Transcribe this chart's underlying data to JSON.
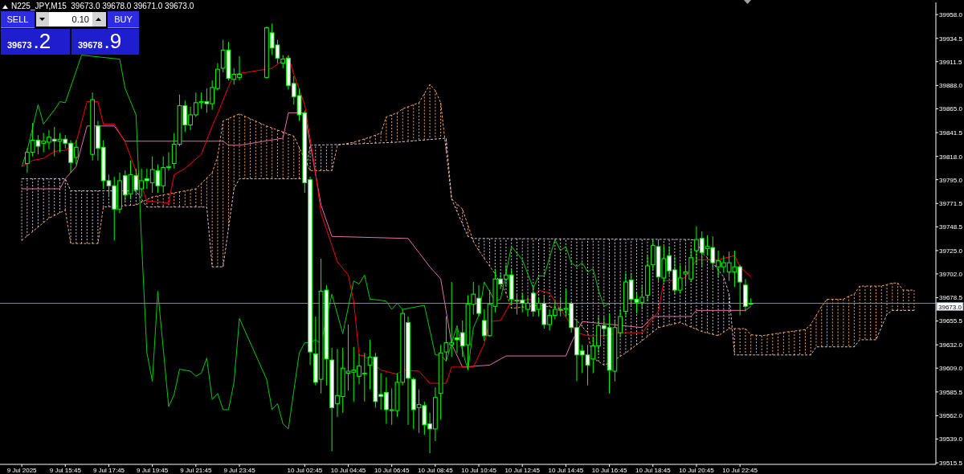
{
  "chart_data": {
    "type": "candlestick",
    "title": "N225_JPY,M15  39673.0 39678.0 39671.0 39673.0",
    "annotations": [
      "SELL",
      "0.10",
      "BUY",
      "39673",
      ".2",
      "39678",
      ".9"
    ],
    "xlim": [
      "2025-07-09T12:45",
      "2025-07-11T07:45"
    ],
    "xticks": [
      {
        "value": "2025-07-09T13:45",
        "label": "9 Jul 2025"
      },
      {
        "value": "2025-07-09T15:45",
        "label": "9 Jul 15:45"
      },
      {
        "value": "2025-07-09T17:45",
        "label": "9 Jul 17:45"
      },
      {
        "value": "2025-07-09T19:45",
        "label": "9 Jul 19:45"
      },
      {
        "value": "2025-07-09T21:45",
        "label": "9 Jul 21:45"
      },
      {
        "value": "2025-07-09T23:45",
        "label": "9 Jul 23:45"
      },
      {
        "value": "2025-07-10T02:45",
        "label": "10 Jul 02:45"
      },
      {
        "value": "2025-07-10T04:45",
        "label": "10 Jul 04:45"
      },
      {
        "value": "2025-07-10T06:45",
        "label": "10 Jul 06:45"
      },
      {
        "value": "2025-07-10T08:45",
        "label": "10 Jul 08:45"
      },
      {
        "value": "2025-07-10T10:45",
        "label": "10 Jul 10:45"
      },
      {
        "value": "2025-07-10T12:45",
        "label": "10 Jul 12:45"
      },
      {
        "value": "2025-07-10T14:45",
        "label": "10 Jul 14:45"
      },
      {
        "value": "2025-07-10T16:45",
        "label": "10 Jul 16:45"
      },
      {
        "value": "2025-07-10T18:45",
        "label": "10 Jul 18:45"
      },
      {
        "value": "2025-07-10T20:45",
        "label": "10 Jul 20:45"
      },
      {
        "value": "2025-07-10T22:45",
        "label": "10 Jul 22:45"
      }
    ],
    "ylim": [
      39514,
      39970
    ],
    "yticks": [
      39515.5,
      {
        "value": 39539,
        "label": "39539.0"
      },
      {
        "value": 39562,
        "label": "39562.0"
      },
      39585.5,
      {
        "value": 39609,
        "label": "39609.0"
      },
      {
        "value": 39632,
        "label": "39632.0"
      },
      39655.5,
      39678.5,
      {
        "value": 39702,
        "label": "39702.0"
      },
      {
        "value": 39725,
        "label": "39725.0"
      },
      39748.5,
      39771.5,
      {
        "value": 39795,
        "label": "39795.0"
      },
      {
        "value": 39818,
        "label": "39818.0"
      },
      39841.5,
      {
        "value": 39865,
        "label": "39865.0"
      },
      {
        "value": 39888,
        "label": "39888.0"
      },
      39911.5,
      39934.5,
      {
        "value": 39958,
        "label": "39958.0"
      }
    ],
    "ref_lines": [
      {
        "axis": "y",
        "value": 39673,
        "label": "39673.0",
        "color": "#778899"
      }
    ],
    "series": [
      {
        "type": "line",
        "color": "#f4a460",
        "line_style": "dashed",
        "x": [
          "2025-07-09T13:45",
          "2025-07-09T15:00",
          "2025-07-09T15:45",
          "2025-07-09T16:00",
          "2025-07-09T17:15",
          "2025-07-09T17:30",
          "2025-07-09T19:00",
          "2025-07-09T19:45",
          "2025-07-09T20:45",
          "2025-07-09T21:45",
          "2025-07-09T22:30",
          "2025-07-09T22:45",
          "2025-07-09T23:00",
          "2025-07-09T23:45",
          "2025-07-10T01:00",
          "2025-07-10T02:15",
          "2025-07-10T03:00",
          "2025-07-10T04:00",
          "2025-07-10T04:15",
          "2025-07-10T05:00",
          "2025-07-10T05:45",
          "2025-07-10T06:15",
          "2025-07-10T06:30",
          "2025-07-10T07:00",
          "2025-07-10T07:15",
          "2025-07-10T08:00",
          "2025-07-10T08:30",
          "2025-07-10T08:45",
          "2025-07-10T09:00",
          "2025-07-10T09:15",
          "2025-07-10T09:30",
          "2025-07-10T10:00",
          "2025-07-10T10:15",
          "2025-07-10T10:30",
          "2025-07-10T10:45",
          "2025-07-10T11:30",
          "2025-07-10T12:00",
          "2025-07-10T12:15",
          "2025-07-10T13:30",
          "2025-07-10T14:30",
          "2025-07-10T15:15",
          "2025-07-10T15:45",
          "2025-07-10T16:00",
          "2025-07-10T16:30",
          "2025-07-10T16:45",
          "2025-07-10T17:30",
          "2025-07-10T18:15",
          "2025-07-10T19:00",
          "2025-07-10T20:00",
          "2025-07-10T21:00",
          "2025-07-10T21:45",
          "2025-07-10T22:15",
          "2025-07-10T23:00",
          "2025-07-10T23:15",
          "2025-07-10T23:45",
          "2025-07-11T01:00",
          "2025-07-11T01:45",
          "2025-07-11T02:00",
          "2025-07-11T02:30",
          "2025-07-11T02:45",
          "2025-07-11T03:30",
          "2025-07-11T03:45",
          "2025-07-11T04:00",
          "2025-07-11T04:15",
          "2025-07-11T05:15",
          "2025-07-11T05:45",
          "2025-07-11T06:00",
          "2025-07-11T06:15",
          "2025-07-11T06:45"
        ],
        "values": [
          39735,
          39757,
          39765,
          39732,
          39732,
          39768,
          39770,
          39778,
          39782,
          39786,
          39802,
          39818,
          39853,
          39860,
          39848,
          39838,
          39804,
          39804,
          39829,
          39832,
          39837,
          39841,
          39857,
          39861,
          39865,
          39871,
          39889,
          39883,
          39871,
          39823,
          39776,
          39766,
          39750,
          39734,
          39725,
          39702,
          39683,
          39668,
          39671,
          39668,
          39656,
          39644,
          39619,
          39612,
          39614,
          39624,
          39636,
          39649,
          39654,
          39645,
          39641,
          39648,
          39648,
          39642,
          39641,
          39645,
          39647,
          39652,
          39670,
          39677,
          39677,
          39680,
          39682,
          39690,
          39690,
          39693,
          39693,
          39686,
          39686
        ]
      },
      {
        "type": "line",
        "color": "#d8bfd8",
        "line_style": "dashed",
        "x": [
          "2025-07-09T13:45",
          "2025-07-09T15:45",
          "2025-07-09T16:00",
          "2025-07-09T19:00",
          "2025-07-09T19:30",
          "2025-07-09T22:15",
          "2025-07-09T22:30",
          "2025-07-09T23:00",
          "2025-07-09T23:15",
          "2025-07-09T23:30",
          "2025-07-09T23:45",
          "2025-07-10T02:45",
          "2025-07-10T03:00",
          "2025-07-10T04:45",
          "2025-07-10T07:00",
          "2025-07-10T09:15",
          "2025-07-10T09:30",
          "2025-07-10T10:15",
          "2025-07-10T10:30",
          "2025-07-10T20:30",
          "2025-07-10T20:45",
          "2025-07-10T21:00",
          "2025-07-10T21:30",
          "2025-07-10T21:45",
          "2025-07-10T22:00",
          "2025-07-10T22:15",
          "2025-07-10T22:30",
          "2025-07-11T02:00",
          "2025-07-11T02:15",
          "2025-07-11T04:00",
          "2025-07-11T04:15",
          "2025-07-11T05:00",
          "2025-07-11T05:30",
          "2025-07-11T05:45",
          "2025-07-11T06:45"
        ],
        "values": [
          39796,
          39796,
          39784,
          39784,
          39768,
          39768,
          39709,
          39709,
          39747,
          39786,
          39796,
          39796,
          39829,
          39830,
          39832,
          39836,
          39776,
          39739,
          39737,
          39736,
          39735,
          39723,
          39713,
          39706,
          39699,
          39682,
          39622,
          39622,
          39630,
          39630,
          39637,
          39637,
          39662,
          39666,
          39666
        ]
      },
      {
        "type": "line",
        "color": "#00cc00",
        "x": [
          "2025-07-09T13:45",
          "2025-07-09T14:00",
          "2025-07-09T14:30",
          "2025-07-09T14:45",
          "2025-07-09T15:15",
          "2025-07-09T15:30",
          "2025-07-09T15:45",
          "2025-07-09T16:30",
          "2025-07-09T18:15",
          "2025-07-09T18:30",
          "2025-07-09T19:00",
          "2025-07-09T19:15",
          "2025-07-09T19:30",
          "2025-07-09T19:45",
          "2025-07-09T20:00",
          "2025-07-09T20:30",
          "2025-07-09T20:45",
          "2025-07-09T21:00",
          "2025-07-09T21:30",
          "2025-07-09T21:45",
          "2025-07-09T22:00",
          "2025-07-09T22:15",
          "2025-07-09T22:30",
          "2025-07-09T22:45",
          "2025-07-09T23:00",
          "2025-07-09T23:15",
          "2025-07-09T23:30",
          "2025-07-09T23:45",
          "2025-07-10T01:00",
          "2025-07-10T01:15",
          "2025-07-10T01:30",
          "2025-07-10T01:45",
          "2025-07-10T02:00",
          "2025-07-10T02:30",
          "2025-07-10T02:45",
          "2025-07-10T03:00",
          "2025-07-10T03:15",
          "2025-07-10T03:30",
          "2025-07-10T04:00",
          "2025-07-10T04:30",
          "2025-07-10T05:00",
          "2025-07-10T05:15",
          "2025-07-10T05:30",
          "2025-07-10T05:45",
          "2025-07-10T06:15",
          "2025-07-10T06:30",
          "2025-07-10T06:45",
          "2025-07-10T07:00",
          "2025-07-10T07:15",
          "2025-07-10T07:30",
          "2025-07-10T08:15",
          "2025-07-10T08:45",
          "2025-07-10T09:00",
          "2025-07-10T09:15",
          "2025-07-10T09:45",
          "2025-07-10T10:00",
          "2025-07-10T10:15",
          "2025-07-10T10:30",
          "2025-07-10T10:45",
          "2025-07-10T11:00",
          "2025-07-10T11:30",
          "2025-07-10T11:45",
          "2025-07-10T12:15",
          "2025-07-10T12:45",
          "2025-07-10T13:15",
          "2025-07-10T13:30",
          "2025-07-10T13:45",
          "2025-07-10T14:15",
          "2025-07-10T14:30",
          "2025-07-10T14:45",
          "2025-07-10T15:00",
          "2025-07-10T15:15",
          "2025-07-10T15:30",
          "2025-07-10T15:45",
          "2025-07-10T16:00",
          "2025-07-10T16:15",
          "2025-07-10T16:30",
          "2025-07-10T16:45"
        ],
        "values": [
          39808,
          39824,
          39869,
          39850,
          39864,
          39872,
          39871,
          39918,
          39914,
          39885,
          39859,
          39735,
          39624,
          39596,
          39685,
          39571,
          39583,
          39608,
          39606,
          39601,
          39604,
          39619,
          39578,
          39584,
          39568,
          39568,
          39595,
          39658,
          39598,
          39568,
          39574,
          39554,
          39549,
          39624,
          39634,
          39634,
          39637,
          39633,
          39682,
          39643,
          39695,
          39692,
          39701,
          39677,
          39676,
          39675,
          39667,
          39673,
          39667,
          39668,
          39671,
          39622,
          39622,
          39616,
          39651,
          39626,
          39607,
          39649,
          39661,
          39694,
          39675,
          39677,
          39729,
          39716,
          39688,
          39700,
          39700,
          39736,
          39725,
          39729,
          39713,
          39709,
          39713,
          39704,
          39707,
          39686,
          39670,
          39673
        ]
      },
      {
        "type": "line",
        "color": "#e06fb0",
        "x": [
          "2025-07-09T13:45",
          "2025-07-09T15:30",
          "2025-07-09T15:45",
          "2025-07-09T16:15",
          "2025-07-09T16:45",
          "2025-07-09T18:00",
          "2025-07-09T18:30",
          "2025-07-09T23:00",
          "2025-07-09T23:15",
          "2025-07-09T23:45",
          "2025-07-10T01:45",
          "2025-07-10T02:00",
          "2025-07-10T02:45",
          "2025-07-10T03:30",
          "2025-07-10T04:00",
          "2025-07-10T07:30",
          "2025-07-10T08:00",
          "2025-07-10T08:30",
          "2025-07-10T09:00",
          "2025-07-10T09:30",
          "2025-07-10T10:00",
          "2025-07-10T11:15",
          "2025-07-10T12:00",
          "2025-07-10T14:45",
          "2025-07-10T15:00",
          "2025-07-10T15:30",
          "2025-07-10T18:15",
          "2025-07-10T18:45",
          "2025-07-10T20:30",
          "2025-07-10T20:45",
          "2025-07-10T23:00",
          "2025-07-10T23:15"
        ],
        "values": [
          39786,
          39786,
          39796,
          39808,
          39848,
          39848,
          39833,
          39833,
          39829,
          39829,
          39836,
          39861,
          39861,
          39770,
          39739,
          39737,
          39723,
          39709,
          39697,
          39633,
          39610,
          39612,
          39621,
          39621,
          39634,
          39655,
          39649,
          39660,
          39660,
          39666,
          39666,
          39670
        ]
      },
      {
        "type": "line",
        "color": "#ff0000",
        "x": [
          "2025-07-09T13:45",
          "2025-07-09T14:15",
          "2025-07-09T14:45",
          "2025-07-09T15:15",
          "2025-07-09T15:45",
          "2025-07-09T16:15",
          "2025-07-09T16:45",
          "2025-07-09T17:15",
          "2025-07-09T17:30",
          "2025-07-09T18:00",
          "2025-07-09T18:30",
          "2025-07-09T19:30",
          "2025-07-09T20:30",
          "2025-07-09T20:45",
          "2025-07-09T21:15",
          "2025-07-09T22:00",
          "2025-07-09T22:30",
          "2025-07-09T22:45",
          "2025-07-09T23:15",
          "2025-07-09T23:30",
          "2025-07-10T01:15",
          "2025-07-10T02:00",
          "2025-07-10T02:15",
          "2025-07-10T02:45",
          "2025-07-10T03:15",
          "2025-07-10T03:30",
          "2025-07-10T04:15",
          "2025-07-10T04:45",
          "2025-07-10T05:00",
          "2025-07-10T05:15",
          "2025-07-10T05:30",
          "2025-07-10T06:15",
          "2025-07-10T07:00",
          "2025-07-10T07:15",
          "2025-07-10T08:00",
          "2025-07-10T08:30",
          "2025-07-10T09:15",
          "2025-07-10T09:30",
          "2025-07-10T10:30",
          "2025-07-10T11:00",
          "2025-07-10T11:15",
          "2025-07-10T11:45",
          "2025-07-10T12:15",
          "2025-07-10T13:15",
          "2025-07-10T13:30",
          "2025-07-10T14:00",
          "2025-07-10T14:30",
          "2025-07-10T15:15",
          "2025-07-10T15:45",
          "2025-07-10T16:30",
          "2025-07-10T17:15",
          "2025-07-10T18:15",
          "2025-07-10T18:45",
          "2025-07-10T19:00",
          "2025-07-10T19:15",
          "2025-07-10T20:00",
          "2025-07-10T20:15",
          "2025-07-10T20:45",
          "2025-07-10T21:45",
          "2025-07-10T22:30",
          "2025-07-10T22:45",
          "2025-07-10T23:15"
        ],
        "values": [
          39808,
          39814,
          39816,
          39823,
          39824,
          39832,
          39872,
          39872,
          39850,
          39850,
          39832,
          39774,
          39772,
          39800,
          39806,
          39820,
          39848,
          39860,
          39887,
          39899,
          39905,
          39917,
          39899,
          39869,
          39802,
          39762,
          39714,
          39701,
          39675,
          39622,
          39621,
          39607,
          39603,
          39607,
          39606,
          39594,
          39594,
          39610,
          39610,
          39633,
          39655,
          39656,
          39675,
          39677,
          39686,
          39683,
          39667,
          39644,
          39641,
          39641,
          39644,
          39644,
          39658,
          39665,
          39695,
          39696,
          39699,
          39716,
          39716,
          39720,
          39709,
          39699
        ]
      },
      {
        "color": "#00ff00",
        "x": [
          "2025-07-09T14:00",
          "2025-07-09T14:15",
          "2025-07-09T14:30",
          "2025-07-09T14:45",
          "2025-07-09T15:00",
          "2025-07-09T15:15",
          "2025-07-09T15:30",
          "2025-07-09T15:45",
          "2025-07-09T16:00",
          "2025-07-09T16:15",
          "2025-07-09T17:00",
          "2025-07-09T17:15",
          "2025-07-09T17:30",
          "2025-07-09T17:45",
          "2025-07-09T18:00",
          "2025-07-09T18:15",
          "2025-07-09T18:30",
          "2025-07-09T18:45",
          "2025-07-09T19:00",
          "2025-07-09T19:15",
          "2025-07-09T19:30",
          "2025-07-09T19:45",
          "2025-07-09T20:00",
          "2025-07-09T20:15",
          "2025-07-09T20:30",
          "2025-07-09T20:45",
          "2025-07-09T21:00",
          "2025-07-09T21:15",
          "2025-07-09T21:30",
          "2025-07-09T21:45",
          "2025-07-09T22:00",
          "2025-07-09T22:15",
          "2025-07-09T22:30",
          "2025-07-09T22:45",
          "2025-07-09T23:00",
          "2025-07-09T23:15",
          "2025-07-09T23:30",
          "2025-07-09T23:45",
          "2025-07-10T01:00",
          "2025-07-10T01:15",
          "2025-07-10T01:30",
          "2025-07-10T01:45",
          "2025-07-10T02:00",
          "2025-07-10T02:15",
          "2025-07-10T02:30",
          "2025-07-10T02:45",
          "2025-07-10T03:00",
          "2025-07-10T03:15",
          "2025-07-10T03:30",
          "2025-07-10T03:45",
          "2025-07-10T04:00",
          "2025-07-10T04:15",
          "2025-07-10T04:30",
          "2025-07-10T04:45",
          "2025-07-10T05:00",
          "2025-07-10T05:15",
          "2025-07-10T05:30",
          "2025-07-10T05:45",
          "2025-07-10T06:00",
          "2025-07-10T06:15",
          "2025-07-10T06:30",
          "2025-07-10T06:45",
          "2025-07-10T07:00",
          "2025-07-10T07:15",
          "2025-07-10T07:30",
          "2025-07-10T07:45",
          "2025-07-10T08:00",
          "2025-07-10T08:15",
          "2025-07-10T08:30",
          "2025-07-10T08:45",
          "2025-07-10T09:00",
          "2025-07-10T09:15",
          "2025-07-10T09:30",
          "2025-07-10T09:45",
          "2025-07-10T10:00",
          "2025-07-10T10:15",
          "2025-07-10T10:30",
          "2025-07-10T10:45",
          "2025-07-10T11:00",
          "2025-07-10T11:15",
          "2025-07-10T11:30",
          "2025-07-10T11:45",
          "2025-07-10T12:00",
          "2025-07-10T12:15",
          "2025-07-10T12:30",
          "2025-07-10T12:45",
          "2025-07-10T13:00",
          "2025-07-10T13:15",
          "2025-07-10T13:30",
          "2025-07-10T13:45",
          "2025-07-10T14:00",
          "2025-07-10T14:15",
          "2025-07-10T14:30",
          "2025-07-10T14:45",
          "2025-07-10T15:00",
          "2025-07-10T15:15",
          "2025-07-10T15:30",
          "2025-07-10T15:45",
          "2025-07-10T16:00",
          "2025-07-10T16:15",
          "2025-07-10T16:30",
          "2025-07-10T16:45",
          "2025-07-10T17:00",
          "2025-07-10T17:15",
          "2025-07-10T17:30",
          "2025-07-10T17:45",
          "2025-07-10T18:00",
          "2025-07-10T18:15",
          "2025-07-10T18:30",
          "2025-07-10T18:45",
          "2025-07-10T19:00",
          "2025-07-10T19:15",
          "2025-07-10T19:30",
          "2025-07-10T19:45",
          "2025-07-10T20:00",
          "2025-07-10T20:15",
          "2025-07-10T20:30",
          "2025-07-10T20:45",
          "2025-07-10T21:00",
          "2025-07-10T21:15",
          "2025-07-10T21:30",
          "2025-07-10T21:45",
          "2025-07-10T22:00",
          "2025-07-10T22:15",
          "2025-07-10T22:30",
          "2025-07-10T22:45",
          "2025-07-10T23:00",
          "2025-07-10T23:15"
        ],
        "ohlc": [
          [
            39811,
            39826,
            39802,
            39822
          ],
          [
            39822,
            39851,
            39818,
            39834
          ],
          [
            39834,
            39839,
            39820,
            39828
          ],
          [
            39831,
            39841,
            39822,
            39833
          ],
          [
            39832,
            39844,
            39825,
            39837
          ],
          [
            39835,
            39847,
            39818,
            39833
          ],
          [
            39833,
            39841,
            39822,
            39835
          ],
          [
            39835,
            39839,
            39826,
            39831
          ],
          [
            39831,
            39834,
            39802,
            39812
          ],
          [
            39817,
            39834,
            39810,
            39827
          ],
          [
            39820,
            39881,
            39814,
            39874
          ],
          [
            39848,
            39853,
            39814,
            39826
          ],
          [
            39827,
            39834,
            39786,
            39794
          ],
          [
            39794,
            39800,
            39778,
            39789
          ],
          [
            39789,
            39798,
            39735,
            39766
          ],
          [
            39766,
            39802,
            39762,
            39794
          ],
          [
            39799,
            39804,
            39774,
            39780
          ],
          [
            39781,
            39814,
            39776,
            39800
          ],
          [
            39799,
            39806,
            39781,
            39785
          ],
          [
            39786,
            39806,
            39778,
            39794
          ],
          [
            39796,
            39806,
            39786,
            39794
          ],
          [
            39792,
            39818,
            39782,
            39805
          ],
          [
            39804,
            39810,
            39782,
            39789
          ],
          [
            39789,
            39818,
            39782,
            39807
          ],
          [
            39807,
            39822,
            39804,
            39808
          ],
          [
            39811,
            39841,
            39806,
            39830
          ],
          [
            39830,
            39879,
            39828,
            39868
          ],
          [
            39868,
            39873,
            39842,
            39849
          ],
          [
            39849,
            39867,
            39844,
            39859
          ],
          [
            39859,
            39881,
            39857,
            39871
          ],
          [
            39871,
            39881,
            39865,
            39872
          ],
          [
            39872,
            39885,
            39861,
            39870
          ],
          [
            39870,
            39893,
            39864,
            39886
          ],
          [
            39885,
            39910,
            39883,
            39904
          ],
          [
            39905,
            39933,
            39901,
            39923
          ],
          [
            39923,
            39931,
            39893,
            39895
          ],
          [
            39894,
            39905,
            39889,
            39899
          ],
          [
            39896,
            39917,
            39893,
            39899
          ],
          [
            39896,
            39946,
            39895,
            39945
          ],
          [
            39940,
            39949,
            39918,
            39925
          ],
          [
            39928,
            39933,
            39910,
            39915
          ],
          [
            39910,
            39918,
            39905,
            39914
          ],
          [
            39915,
            39918,
            39884,
            39888
          ],
          [
            39890,
            39897,
            39869,
            39877
          ],
          [
            39878,
            39885,
            39853,
            39859
          ],
          [
            39861,
            39863,
            39782,
            39792
          ],
          [
            39795,
            39798,
            39612,
            39625
          ],
          [
            39623,
            39660,
            39592,
            39595
          ],
          [
            39598,
            39717,
            39584,
            39685
          ],
          [
            39686,
            39691,
            39592,
            39618
          ],
          [
            39617,
            39629,
            39527,
            39570
          ],
          [
            39574,
            39628,
            39561,
            39582
          ],
          [
            39581,
            39629,
            39565,
            39609
          ],
          [
            39604,
            39652,
            39587,
            39606
          ],
          [
            39605,
            39630,
            39576,
            39607
          ],
          [
            39601,
            39623,
            39593,
            39611
          ],
          [
            39603,
            39624,
            39576,
            39604
          ],
          [
            39612,
            39637,
            39588,
            39620
          ],
          [
            39620,
            39624,
            39570,
            39576
          ],
          [
            39583,
            39604,
            39568,
            39581
          ],
          [
            39585,
            39600,
            39554,
            39568
          ],
          [
            39567,
            39589,
            39553,
            39568
          ],
          [
            39567,
            39604,
            39561,
            39595
          ],
          [
            39595,
            39667,
            39592,
            39663
          ],
          [
            39654,
            39660,
            39553,
            39599
          ],
          [
            39598,
            39600,
            39549,
            39568
          ],
          [
            39570,
            39588,
            39545,
            39573
          ],
          [
            39572,
            39576,
            39543,
            39553
          ],
          [
            39554,
            39565,
            39525,
            39549
          ],
          [
            39549,
            39590,
            39537,
            39580
          ],
          [
            39584,
            39632,
            39558,
            39624
          ],
          [
            39625,
            39660,
            39616,
            39634
          ],
          [
            39632,
            39694,
            39620,
            39634
          ],
          [
            39639,
            39648,
            39624,
            39637
          ],
          [
            39644,
            39656,
            39620,
            39631
          ],
          [
            39632,
            39681,
            39608,
            39672
          ],
          [
            39672,
            39694,
            39662,
            39682
          ],
          [
            39678,
            39691,
            39660,
            39663
          ],
          [
            39656,
            39667,
            39636,
            39641
          ],
          [
            39641,
            39686,
            39640,
            39672
          ],
          [
            39670,
            39707,
            39664,
            39697
          ],
          [
            39697,
            39703,
            39687,
            39692
          ],
          [
            39697,
            39711,
            39691,
            39701
          ],
          [
            39701,
            39707,
            39671,
            39677
          ],
          [
            39676,
            39683,
            39662,
            39676
          ],
          [
            39676,
            39683,
            39664,
            39673
          ],
          [
            39667,
            39679,
            39660,
            39673
          ],
          [
            39683,
            39689,
            39660,
            39665
          ],
          [
            39667,
            39679,
            39660,
            39673
          ],
          [
            39673,
            39681,
            39648,
            39652
          ],
          [
            39652,
            39667,
            39646,
            39661
          ],
          [
            39661,
            39675,
            39657,
            39667
          ],
          [
            39667,
            39679,
            39660,
            39667
          ],
          [
            39667,
            39687,
            39660,
            39668
          ],
          [
            39673,
            39675,
            39644,
            39649
          ],
          [
            39649,
            39656,
            39596,
            39622
          ],
          [
            39626,
            39632,
            39604,
            39622
          ],
          [
            39622,
            39632,
            39592,
            39612
          ],
          [
            39618,
            39640,
            39604,
            39631
          ],
          [
            39631,
            39660,
            39624,
            39651
          ],
          [
            39651,
            39660,
            39640,
            39648
          ],
          [
            39649,
            39663,
            39584,
            39607
          ],
          [
            39606,
            39656,
            39596,
            39649
          ],
          [
            39644,
            39667,
            39640,
            39660
          ],
          [
            39665,
            39703,
            39660,
            39694
          ],
          [
            39696,
            39703,
            39671,
            39677
          ],
          [
            39677,
            39683,
            39663,
            39674
          ],
          [
            39674,
            39691,
            39667,
            39679
          ],
          [
            39681,
            39720,
            39675,
            39710
          ],
          [
            39711,
            39736,
            39706,
            39730
          ],
          [
            39729,
            39736,
            39695,
            39699
          ],
          [
            39698,
            39730,
            39694,
            39717
          ],
          [
            39720,
            39729,
            39701,
            39705
          ],
          [
            39706,
            39719,
            39682,
            39686
          ],
          [
            39686,
            39711,
            39683,
            39698
          ],
          [
            39702,
            39711,
            39691,
            39704
          ],
          [
            39697,
            39727,
            39694,
            39718
          ],
          [
            39725,
            39749,
            39711,
            39736
          ],
          [
            39737,
            39744,
            39709,
            39723
          ],
          [
            39727,
            39740,
            39720,
            39729
          ],
          [
            39728,
            39739,
            39707,
            39713
          ],
          [
            39709,
            39725,
            39699,
            39715
          ],
          [
            39709,
            39720,
            39703,
            39713
          ],
          [
            39704,
            39724,
            39695,
            39713
          ],
          [
            39704,
            39725,
            39689,
            39709
          ],
          [
            39709,
            39711,
            39661,
            39694
          ],
          [
            39691,
            39697,
            39665,
            39670
          ],
          [
            39673,
            39678,
            39671,
            39673
          ]
        ],
        "colors": [
          "#000000",
          "#000000",
          "#ffffff",
          "#000000",
          "#000000",
          "#ffffff",
          "#000000",
          "#ffffff",
          "#ffffff",
          "#000000",
          "#000000",
          "#ffffff",
          "#ffffff",
          "#ffffff",
          "#ffffff",
          "#000000",
          "#ffffff",
          "#000000",
          "#ffffff",
          "#000000",
          "#ffffff",
          "#000000",
          "#ffffff",
          "#000000",
          "#000000",
          "#000000",
          "#000000",
          "#ffffff",
          "#000000",
          "#000000",
          "#000000",
          "#ffffff",
          "#000000",
          "#000000",
          "#000000",
          "#ffffff",
          "#000000",
          "#000000",
          "#000000",
          "#ffffff",
          "#ffffff",
          "#000000",
          "#ffffff",
          "#ffffff",
          "#ffffff",
          "#ffffff",
          "#ffffff",
          "#ffffff",
          "#000000",
          "#ffffff",
          "#ffffff",
          "#000000",
          "#000000",
          "#000000",
          "#000000",
          "#000000",
          "#000000",
          "#000000",
          "#ffffff",
          "#ffffff",
          "#ffffff",
          "#000000",
          "#000000",
          "#000000",
          "#ffffff",
          "#ffffff",
          "#000000",
          "#ffffff",
          "#ffffff",
          "#000000",
          "#000000",
          "#000000",
          "#000000",
          "#ffffff",
          "#ffffff",
          "#000000",
          "#000000",
          "#ffffff",
          "#ffffff",
          "#000000",
          "#000000",
          "#ffffff",
          "#000000",
          "#ffffff",
          "#000000",
          "#ffffff",
          "#000000",
          "#ffffff",
          "#000000",
          "#ffffff",
          "#000000",
          "#000000",
          "#000000",
          "#000000",
          "#ffffff",
          "#ffffff",
          "#ffffff",
          "#ffffff",
          "#000000",
          "#000000",
          "#ffffff",
          "#ffffff",
          "#000000",
          "#000000",
          "#000000",
          "#ffffff",
          "#ffffff",
          "#000000",
          "#000000",
          "#000000",
          "#ffffff",
          "#000000",
          "#ffffff",
          "#ffffff",
          "#000000",
          "#000000",
          "#000000",
          "#000000",
          "#ffffff",
          "#000000",
          "#ffffff",
          "#000000",
          "#000000",
          "#000000",
          "#000000",
          "#ffffff",
          "#ffffff",
          "#000000"
        ]
      }
    ]
  }
}
